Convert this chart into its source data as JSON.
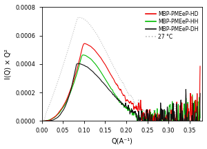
{
  "title": "",
  "xlabel": "Q(A⁻¹)",
  "ylabel": "I(Q) × Q²",
  "xlim": [
    0.0,
    0.38
  ],
  "ylim": [
    0.0,
    0.0008
  ],
  "yticks": [
    0.0,
    0.0002,
    0.0004,
    0.0006,
    0.0008
  ],
  "xticks": [
    0.0,
    0.05,
    0.1,
    0.15,
    0.2,
    0.25,
    0.3,
    0.35
  ],
  "colors": {
    "HD": "#ee0000",
    "HH": "#00bb00",
    "DH": "#111111",
    "ref27": "#bbbbbb"
  },
  "legend_labels": [
    "MBP-PMEeP-HD",
    "MBP-PMEeP-HH",
    "MBP-PMEeP-DH",
    "27 °C"
  ],
  "background_color": "#ffffff",
  "linewidth": 0.8
}
